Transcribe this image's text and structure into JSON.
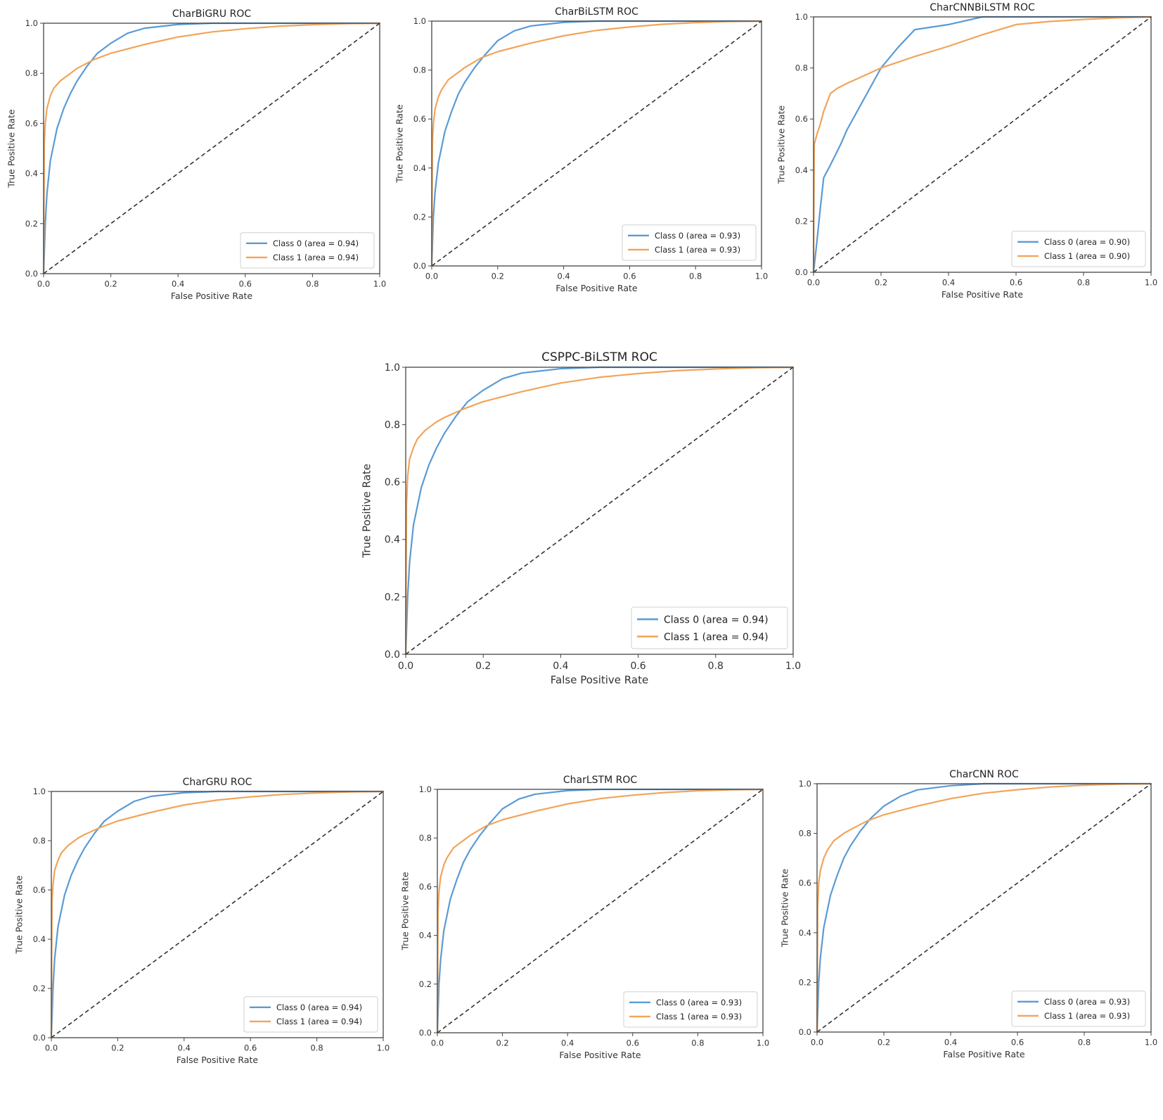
{
  "colors": {
    "class0": "#5b9bd5",
    "class1": "#f0a55a",
    "diagonal": "#333333"
  },
  "chart_data": [
    {
      "type": "line",
      "title": "CharBiGRU ROC",
      "xlabel": "False Positive Rate",
      "ylabel": "True Positive Rate",
      "xlim": [
        0,
        1
      ],
      "ylim": [
        0,
        1
      ],
      "xticks": [
        "0.0",
        "0.2",
        "0.4",
        "0.6",
        "0.8",
        "1.0"
      ],
      "yticks": [
        "0.0",
        "0.2",
        "0.4",
        "0.6",
        "0.8",
        "1.0"
      ],
      "legend_position": "lower-right",
      "series": [
        {
          "name": "Class 0 (area = 0.94)",
          "color_key": "class0",
          "x": [
            0,
            0.005,
            0.01,
            0.02,
            0.04,
            0.06,
            0.08,
            0.1,
            0.13,
            0.16,
            0.2,
            0.25,
            0.3,
            0.4,
            0.5,
            0.6,
            0.8,
            1.0
          ],
          "y": [
            0,
            0.2,
            0.32,
            0.45,
            0.58,
            0.66,
            0.72,
            0.77,
            0.83,
            0.88,
            0.92,
            0.96,
            0.98,
            0.995,
            1.0,
            1.0,
            1.0,
            1.0
          ]
        },
        {
          "name": "Class 1 (area = 0.94)",
          "color_key": "class1",
          "x": [
            0,
            0.002,
            0.005,
            0.01,
            0.02,
            0.03,
            0.05,
            0.08,
            0.1,
            0.15,
            0.2,
            0.3,
            0.4,
            0.5,
            0.6,
            0.7,
            0.8,
            0.9,
            1.0
          ],
          "y": [
            0,
            0.52,
            0.6,
            0.66,
            0.71,
            0.74,
            0.77,
            0.8,
            0.82,
            0.855,
            0.88,
            0.915,
            0.945,
            0.965,
            0.978,
            0.988,
            0.994,
            0.998,
            1.0
          ]
        },
        {
          "name": "",
          "color_key": "diagonal",
          "dashed": true,
          "x": [
            0,
            1
          ],
          "y": [
            0,
            1
          ]
        }
      ]
    },
    {
      "type": "line",
      "title": "CharBiLSTM ROC",
      "xlabel": "False Positive Rate",
      "ylabel": "True Positive Rate",
      "xlim": [
        0,
        1
      ],
      "ylim": [
        0,
        1
      ],
      "xticks": [
        "0.0",
        "0.2",
        "0.4",
        "0.6",
        "0.8",
        "1.0"
      ],
      "yticks": [
        "0.0",
        "0.2",
        "0.4",
        "0.6",
        "0.8",
        "1.0"
      ],
      "legend_position": "lower-right",
      "series": [
        {
          "name": "Class 0 (area = 0.93)",
          "color_key": "class0",
          "x": [
            0,
            0.005,
            0.01,
            0.02,
            0.04,
            0.06,
            0.08,
            0.1,
            0.13,
            0.16,
            0.2,
            0.25,
            0.3,
            0.4,
            0.5,
            0.6,
            0.8,
            1.0
          ],
          "y": [
            0,
            0.2,
            0.3,
            0.42,
            0.55,
            0.63,
            0.7,
            0.75,
            0.81,
            0.86,
            0.92,
            0.96,
            0.98,
            0.995,
            1.0,
            1.0,
            1.0,
            1.0
          ]
        },
        {
          "name": "Class 1 (area = 0.93)",
          "color_key": "class1",
          "x": [
            0,
            0.002,
            0.005,
            0.01,
            0.02,
            0.03,
            0.05,
            0.08,
            0.1,
            0.15,
            0.2,
            0.3,
            0.4,
            0.5,
            0.6,
            0.7,
            0.8,
            0.9,
            1.0
          ],
          "y": [
            0,
            0.5,
            0.58,
            0.64,
            0.69,
            0.72,
            0.76,
            0.79,
            0.81,
            0.85,
            0.875,
            0.91,
            0.94,
            0.962,
            0.976,
            0.987,
            0.994,
            0.998,
            1.0
          ]
        },
        {
          "name": "",
          "color_key": "diagonal",
          "dashed": true,
          "x": [
            0,
            1
          ],
          "y": [
            0,
            1
          ]
        }
      ]
    },
    {
      "type": "line",
      "title": "CharCNNBiLSTM ROC",
      "xlabel": "False Positive Rate",
      "ylabel": "True Positive Rate",
      "xlim": [
        0,
        1
      ],
      "ylim": [
        0,
        1
      ],
      "xticks": [
        "0.0",
        "0.2",
        "0.4",
        "0.6",
        "0.8",
        "1.0"
      ],
      "yticks": [
        "0.0",
        "0.2",
        "0.4",
        "0.6",
        "0.8",
        "1.0"
      ],
      "legend_position": "lower-right",
      "series": [
        {
          "name": "Class 0 (area = 0.90)",
          "color_key": "class0",
          "x": [
            0,
            0.01,
            0.02,
            0.03,
            0.05,
            0.08,
            0.1,
            0.15,
            0.2,
            0.25,
            0.3,
            0.4,
            0.5,
            0.6,
            0.8,
            1.0
          ],
          "y": [
            0,
            0.12,
            0.25,
            0.37,
            0.42,
            0.5,
            0.56,
            0.68,
            0.8,
            0.88,
            0.95,
            0.97,
            1.0,
            1.0,
            1.0,
            1.0
          ]
        },
        {
          "name": "Class 1 (area = 0.90)",
          "color_key": "class1",
          "x": [
            0,
            0.002,
            0.01,
            0.02,
            0.03,
            0.05,
            0.07,
            0.1,
            0.15,
            0.2,
            0.3,
            0.4,
            0.5,
            0.6,
            0.7,
            0.8,
            0.9,
            1.0
          ],
          "y": [
            0,
            0.5,
            0.54,
            0.58,
            0.63,
            0.7,
            0.72,
            0.74,
            0.77,
            0.8,
            0.845,
            0.885,
            0.93,
            0.97,
            0.982,
            0.99,
            0.996,
            1.0
          ]
        },
        {
          "name": "",
          "color_key": "diagonal",
          "dashed": true,
          "x": [
            0,
            1
          ],
          "y": [
            0,
            1
          ]
        }
      ]
    },
    {
      "type": "line",
      "title": "CSPPC-BiLSTM ROC",
      "xlabel": "False Positive Rate",
      "ylabel": "True Positive Rate",
      "xlim": [
        0,
        1
      ],
      "ylim": [
        0,
        1
      ],
      "xticks": [
        "0.0",
        "0.2",
        "0.4",
        "0.6",
        "0.8",
        "1.0"
      ],
      "yticks": [
        "0.0",
        "0.2",
        "0.4",
        "0.6",
        "0.8",
        "1.0"
      ],
      "legend_position": "lower-right",
      "series": [
        {
          "name": "Class 0 (area = 0.94)",
          "color_key": "class0",
          "x": [
            0,
            0.005,
            0.01,
            0.02,
            0.04,
            0.06,
            0.08,
            0.1,
            0.13,
            0.16,
            0.2,
            0.25,
            0.3,
            0.4,
            0.5,
            0.6,
            0.8,
            1.0
          ],
          "y": [
            0,
            0.2,
            0.32,
            0.45,
            0.58,
            0.66,
            0.72,
            0.77,
            0.83,
            0.88,
            0.92,
            0.96,
            0.98,
            0.995,
            1.0,
            1.0,
            1.0,
            1.0
          ]
        },
        {
          "name": "Class 1 (area = 0.94)",
          "color_key": "class1",
          "x": [
            0,
            0.002,
            0.005,
            0.01,
            0.02,
            0.03,
            0.05,
            0.08,
            0.1,
            0.15,
            0.2,
            0.3,
            0.4,
            0.5,
            0.6,
            0.7,
            0.8,
            0.9,
            1.0
          ],
          "y": [
            0,
            0.52,
            0.62,
            0.68,
            0.72,
            0.75,
            0.78,
            0.81,
            0.825,
            0.855,
            0.88,
            0.915,
            0.945,
            0.965,
            0.978,
            0.988,
            0.994,
            0.998,
            1.0
          ]
        },
        {
          "name": "",
          "color_key": "diagonal",
          "dashed": true,
          "x": [
            0,
            1
          ],
          "y": [
            0,
            1
          ]
        }
      ]
    },
    {
      "type": "line",
      "title": "CharGRU ROC",
      "xlabel": "False Positive Rate",
      "ylabel": "True Positive Rate",
      "xlim": [
        0,
        1
      ],
      "ylim": [
        0,
        1
      ],
      "xticks": [
        "0.0",
        "0.2",
        "0.4",
        "0.6",
        "0.8",
        "1.0"
      ],
      "yticks": [
        "0.0",
        "0.2",
        "0.4",
        "0.6",
        "0.8",
        "1.0"
      ],
      "legend_position": "lower-right",
      "series": [
        {
          "name": "Class 0 (area = 0.94)",
          "color_key": "class0",
          "x": [
            0,
            0.005,
            0.01,
            0.02,
            0.04,
            0.06,
            0.08,
            0.1,
            0.13,
            0.16,
            0.2,
            0.25,
            0.3,
            0.4,
            0.5,
            0.6,
            0.8,
            1.0
          ],
          "y": [
            0,
            0.2,
            0.32,
            0.45,
            0.58,
            0.66,
            0.72,
            0.77,
            0.83,
            0.88,
            0.92,
            0.96,
            0.98,
            0.995,
            1.0,
            1.0,
            1.0,
            1.0
          ]
        },
        {
          "name": "Class 1 (area = 0.94)",
          "color_key": "class1",
          "x": [
            0,
            0.002,
            0.005,
            0.01,
            0.02,
            0.03,
            0.05,
            0.08,
            0.1,
            0.15,
            0.2,
            0.3,
            0.4,
            0.5,
            0.6,
            0.7,
            0.8,
            0.9,
            1.0
          ],
          "y": [
            0,
            0.55,
            0.62,
            0.68,
            0.72,
            0.75,
            0.78,
            0.81,
            0.825,
            0.855,
            0.88,
            0.915,
            0.945,
            0.965,
            0.978,
            0.988,
            0.994,
            0.998,
            1.0
          ]
        },
        {
          "name": "",
          "color_key": "diagonal",
          "dashed": true,
          "x": [
            0,
            1
          ],
          "y": [
            0,
            1
          ]
        }
      ]
    },
    {
      "type": "line",
      "title": "CharLSTM ROC",
      "xlabel": "False Positive Rate",
      "ylabel": "True Positive Rate",
      "xlim": [
        0,
        1
      ],
      "ylim": [
        0,
        1
      ],
      "xticks": [
        "0.0",
        "0.2",
        "0.4",
        "0.6",
        "0.8",
        "1.0"
      ],
      "yticks": [
        "0.0",
        "0.2",
        "0.4",
        "0.6",
        "0.8",
        "1.0"
      ],
      "legend_position": "lower-right",
      "series": [
        {
          "name": "Class 0 (area = 0.93)",
          "color_key": "class0",
          "x": [
            0,
            0.005,
            0.01,
            0.02,
            0.04,
            0.06,
            0.08,
            0.1,
            0.13,
            0.16,
            0.2,
            0.25,
            0.3,
            0.4,
            0.5,
            0.6,
            0.8,
            1.0
          ],
          "y": [
            0,
            0.2,
            0.3,
            0.42,
            0.55,
            0.63,
            0.7,
            0.75,
            0.81,
            0.86,
            0.92,
            0.96,
            0.98,
            0.995,
            1.0,
            1.0,
            1.0,
            1.0
          ]
        },
        {
          "name": "Class 1 (area = 0.93)",
          "color_key": "class1",
          "x": [
            0,
            0.002,
            0.005,
            0.01,
            0.02,
            0.03,
            0.05,
            0.08,
            0.1,
            0.15,
            0.2,
            0.3,
            0.4,
            0.5,
            0.6,
            0.7,
            0.8,
            0.9,
            1.0
          ],
          "y": [
            0,
            0.5,
            0.58,
            0.64,
            0.69,
            0.72,
            0.76,
            0.79,
            0.81,
            0.85,
            0.875,
            0.91,
            0.94,
            0.962,
            0.976,
            0.987,
            0.994,
            0.998,
            1.0
          ]
        },
        {
          "name": "",
          "color_key": "diagonal",
          "dashed": true,
          "x": [
            0,
            1
          ],
          "y": [
            0,
            1
          ]
        }
      ]
    },
    {
      "type": "line",
      "title": "CharCNN ROC",
      "xlabel": "False Positive Rate",
      "ylabel": "True Positive Rate",
      "xlim": [
        0,
        1
      ],
      "ylim": [
        0,
        1
      ],
      "xticks": [
        "0.0",
        "0.2",
        "0.4",
        "0.6",
        "0.8",
        "1.0"
      ],
      "yticks": [
        "0.0",
        "0.2",
        "0.4",
        "0.6",
        "0.8",
        "1.0"
      ],
      "legend_position": "lower-right",
      "series": [
        {
          "name": "Class 0 (area = 0.93)",
          "color_key": "class0",
          "x": [
            0,
            0.005,
            0.01,
            0.02,
            0.04,
            0.06,
            0.08,
            0.1,
            0.13,
            0.16,
            0.2,
            0.25,
            0.3,
            0.4,
            0.5,
            0.6,
            0.8,
            1.0
          ],
          "y": [
            0,
            0.2,
            0.3,
            0.42,
            0.55,
            0.63,
            0.7,
            0.75,
            0.81,
            0.86,
            0.91,
            0.95,
            0.975,
            0.992,
            1.0,
            1.0,
            1.0,
            1.0
          ]
        },
        {
          "name": "Class 1 (area = 0.93)",
          "color_key": "class1",
          "x": [
            0,
            0.002,
            0.005,
            0.01,
            0.02,
            0.03,
            0.05,
            0.08,
            0.1,
            0.15,
            0.2,
            0.3,
            0.4,
            0.5,
            0.6,
            0.7,
            0.8,
            0.9,
            1.0
          ],
          "y": [
            0,
            0.5,
            0.6,
            0.65,
            0.7,
            0.73,
            0.77,
            0.8,
            0.815,
            0.85,
            0.875,
            0.91,
            0.94,
            0.962,
            0.976,
            0.987,
            0.994,
            0.998,
            1.0
          ]
        },
        {
          "name": "",
          "color_key": "diagonal",
          "dashed": true,
          "x": [
            0,
            1
          ],
          "y": [
            0,
            1
          ]
        }
      ]
    }
  ]
}
